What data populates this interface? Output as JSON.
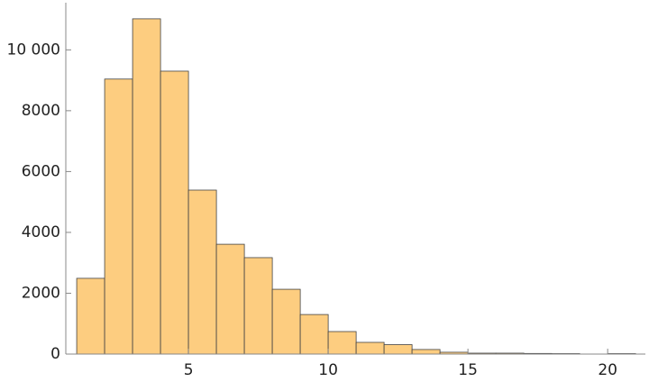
{
  "chart_data": {
    "type": "histogram",
    "bins": [
      1,
      2,
      3,
      4,
      5,
      6,
      7,
      8,
      9,
      10,
      11,
      12,
      13,
      14,
      15,
      16,
      17,
      18,
      19,
      20,
      21
    ],
    "counts": [
      2490,
      9040,
      11020,
      9300,
      5390,
      3610,
      3170,
      2130,
      1300,
      740,
      385,
      310,
      150,
      60,
      30,
      30,
      20,
      15,
      0,
      15
    ],
    "color": "#fdcd80",
    "xlim": [
      0.61,
      21.35
    ],
    "ylim": [
      0,
      11550
    ],
    "xticks": [
      5,
      10,
      15,
      20
    ],
    "yticks": [
      0,
      2000,
      4000,
      6000,
      8000,
      {
        "value": 10000,
        "label": "10 000"
      }
    ]
  }
}
